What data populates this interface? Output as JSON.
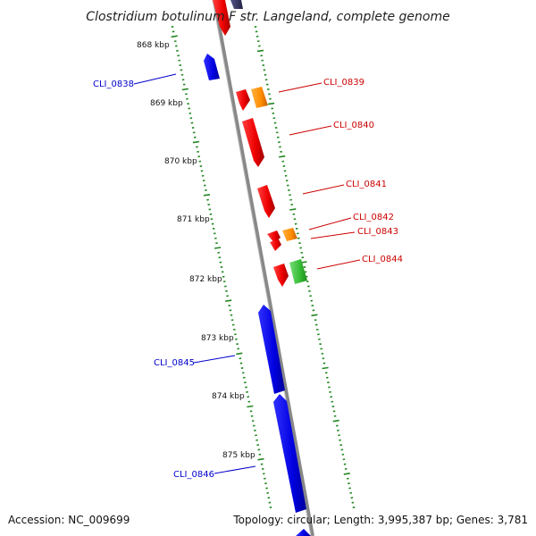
{
  "title": "Clostridium botulinum F str. Langeland, complete genome",
  "accession": "Accession: NC_009699",
  "topology": "Topology: circular; Length: 3,995,387 bp; Genes: 3,781",
  "colors": {
    "minus_strand_gene": "#0000ee",
    "plus_strand_gene": "#ee0000",
    "orange_gene": "#ff8c00",
    "green_gene": "#33bb33",
    "dark_gene": "#333366",
    "tick": "#228822",
    "backbone": "#888888"
  },
  "kbp_ticks": [
    "868 kbp",
    "869 kbp",
    "870 kbp",
    "871 kbp",
    "872 kbp",
    "873 kbp",
    "874 kbp",
    "875 kbp"
  ],
  "genes": [
    {
      "id": "CLI_0838",
      "strand": "minus",
      "color": "#0000ee"
    },
    {
      "id": "CLI_0839",
      "strand": "plus",
      "color": "#ee0000"
    },
    {
      "id": "CLI_0840",
      "strand": "plus",
      "color": "#ee0000"
    },
    {
      "id": "CLI_0841",
      "strand": "plus",
      "color": "#ee0000"
    },
    {
      "id": "CLI_0842",
      "strand": "plus",
      "color": "#ee0000"
    },
    {
      "id": "CLI_0843",
      "strand": "plus",
      "color": "#ee0000"
    },
    {
      "id": "CLI_0844",
      "strand": "plus",
      "color": "#ee0000"
    },
    {
      "id": "CLI_0845",
      "strand": "minus",
      "color": "#0000ee"
    },
    {
      "id": "CLI_0846",
      "strand": "minus",
      "color": "#0000ee"
    }
  ]
}
